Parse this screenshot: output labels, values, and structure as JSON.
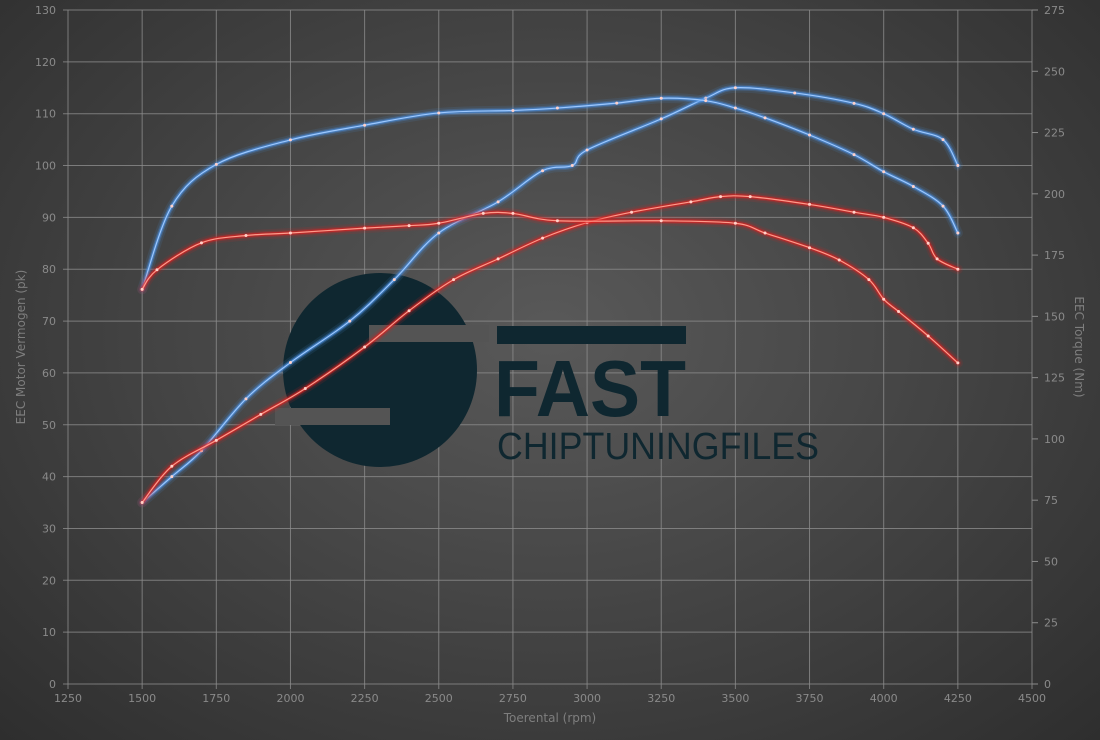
{
  "logo": {
    "line1": "FAST",
    "line2": "CHIPTUNINGFILES",
    "color": "#0f2730"
  },
  "chart_data": {
    "type": "line",
    "xlabel": "Toerental (rpm)",
    "ylabel_left": "EEC Motor Vermogen (pk)",
    "ylabel_right": "EEC Torque (Nm)",
    "xlim": [
      1250,
      4500
    ],
    "ylim_left": [
      0,
      130
    ],
    "ylim_right": [
      0,
      275
    ],
    "xticks": [
      1250,
      1500,
      1750,
      2000,
      2250,
      2500,
      2750,
      3000,
      3250,
      3500,
      3750,
      4000,
      4250,
      4500
    ],
    "yticks_left": [
      0,
      10,
      20,
      30,
      40,
      50,
      60,
      70,
      80,
      90,
      100,
      110,
      120,
      130
    ],
    "yticks_right": [
      0,
      25,
      50,
      75,
      100,
      125,
      150,
      175,
      200,
      225,
      250,
      275
    ],
    "grid": true,
    "series": [
      {
        "axis": "left",
        "color": "#4a90e2",
        "x": [
          1500,
          1600,
          1700,
          1850,
          2000,
          2200,
          2350,
          2500,
          2700,
          2850,
          2950,
          3000,
          3250,
          3400,
          3500,
          3700,
          3900,
          4000,
          4100,
          4200,
          4250
        ],
        "values": [
          35,
          40,
          45,
          55,
          62,
          70,
          78,
          87,
          93,
          99,
          100,
          103,
          109,
          113,
          115,
          114,
          112,
          110,
          107,
          105,
          100
        ]
      },
      {
        "axis": "right",
        "color": "#4a90e2",
        "x": [
          1500,
          1600,
          1750,
          2000,
          2250,
          2500,
          2750,
          2900,
          3100,
          3250,
          3400,
          3500,
          3600,
          3750,
          3900,
          4000,
          4100,
          4200,
          4250
        ],
        "values": [
          161,
          195,
          212,
          222,
          228,
          233,
          234,
          235,
          237,
          239,
          238,
          235,
          231,
          224,
          216,
          209,
          203,
          195,
          184
        ]
      },
      {
        "axis": "left",
        "color": "#e02020",
        "x": [
          1500,
          1600,
          1750,
          1900,
          2050,
          2250,
          2400,
          2550,
          2700,
          2850,
          3000,
          3150,
          3350,
          3450,
          3550,
          3750,
          3900,
          4000,
          4100,
          4150,
          4180,
          4250
        ],
        "values": [
          35,
          42,
          47,
          52,
          57,
          65,
          72,
          78,
          82,
          86,
          89,
          91,
          93,
          94,
          94,
          92.5,
          91,
          90,
          88,
          85,
          82,
          80
        ]
      },
      {
        "axis": "right",
        "color": "#e02020",
        "x": [
          1500,
          1550,
          1700,
          1850,
          2000,
          2250,
          2400,
          2500,
          2650,
          2750,
          2900,
          3250,
          3500,
          3600,
          3750,
          3850,
          3950,
          4000,
          4050,
          4150,
          4250
        ],
        "values": [
          161,
          169,
          180,
          183,
          184,
          186,
          187,
          188,
          192,
          192,
          189,
          189,
          188,
          184,
          178,
          173,
          165,
          157,
          152,
          142,
          131
        ]
      }
    ]
  }
}
